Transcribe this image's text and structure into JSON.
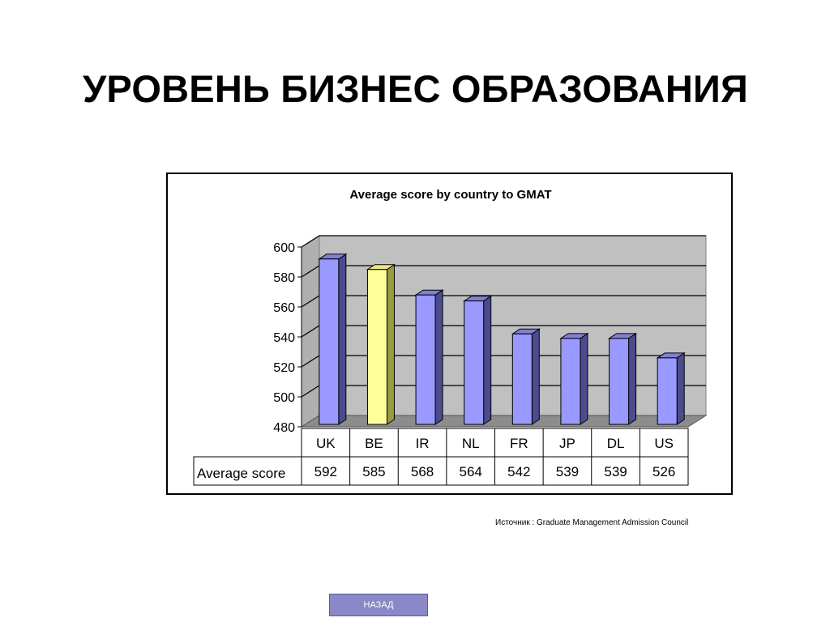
{
  "slide": {
    "title": "УРОВЕНЬ БИЗНЕС ОБРАЗОВАНИЯ",
    "source": "Источник : Graduate Management Admission Council",
    "back_label": "НАЗАД"
  },
  "chart_data": {
    "type": "bar",
    "title": "Average score by country to GMAT",
    "categories": [
      "UK",
      "BE",
      "IR",
      "NL",
      "FR",
      "JP",
      "DL",
      "US"
    ],
    "series": [
      {
        "name": "Average score",
        "values": [
          592,
          585,
          568,
          564,
          542,
          539,
          539,
          526
        ]
      }
    ],
    "highlight_category": "BE",
    "colors": {
      "bar": "#9999ff",
      "bar_side": "#4b4b8f",
      "bar_top": "#8080d8",
      "highlight": "#ffff99",
      "highlight_side": "#9a9a40",
      "highlight_top": "#e8e880",
      "plot_back": "#c0c0c0",
      "plot_floor": "#8c8c8c",
      "plot_side": "#b0b0b0"
    },
    "ylim": [
      480,
      600
    ],
    "yticks": [
      480,
      500,
      520,
      540,
      560,
      580,
      600
    ],
    "grid": true,
    "legend": "data-table",
    "xlabel": "",
    "ylabel": ""
  }
}
